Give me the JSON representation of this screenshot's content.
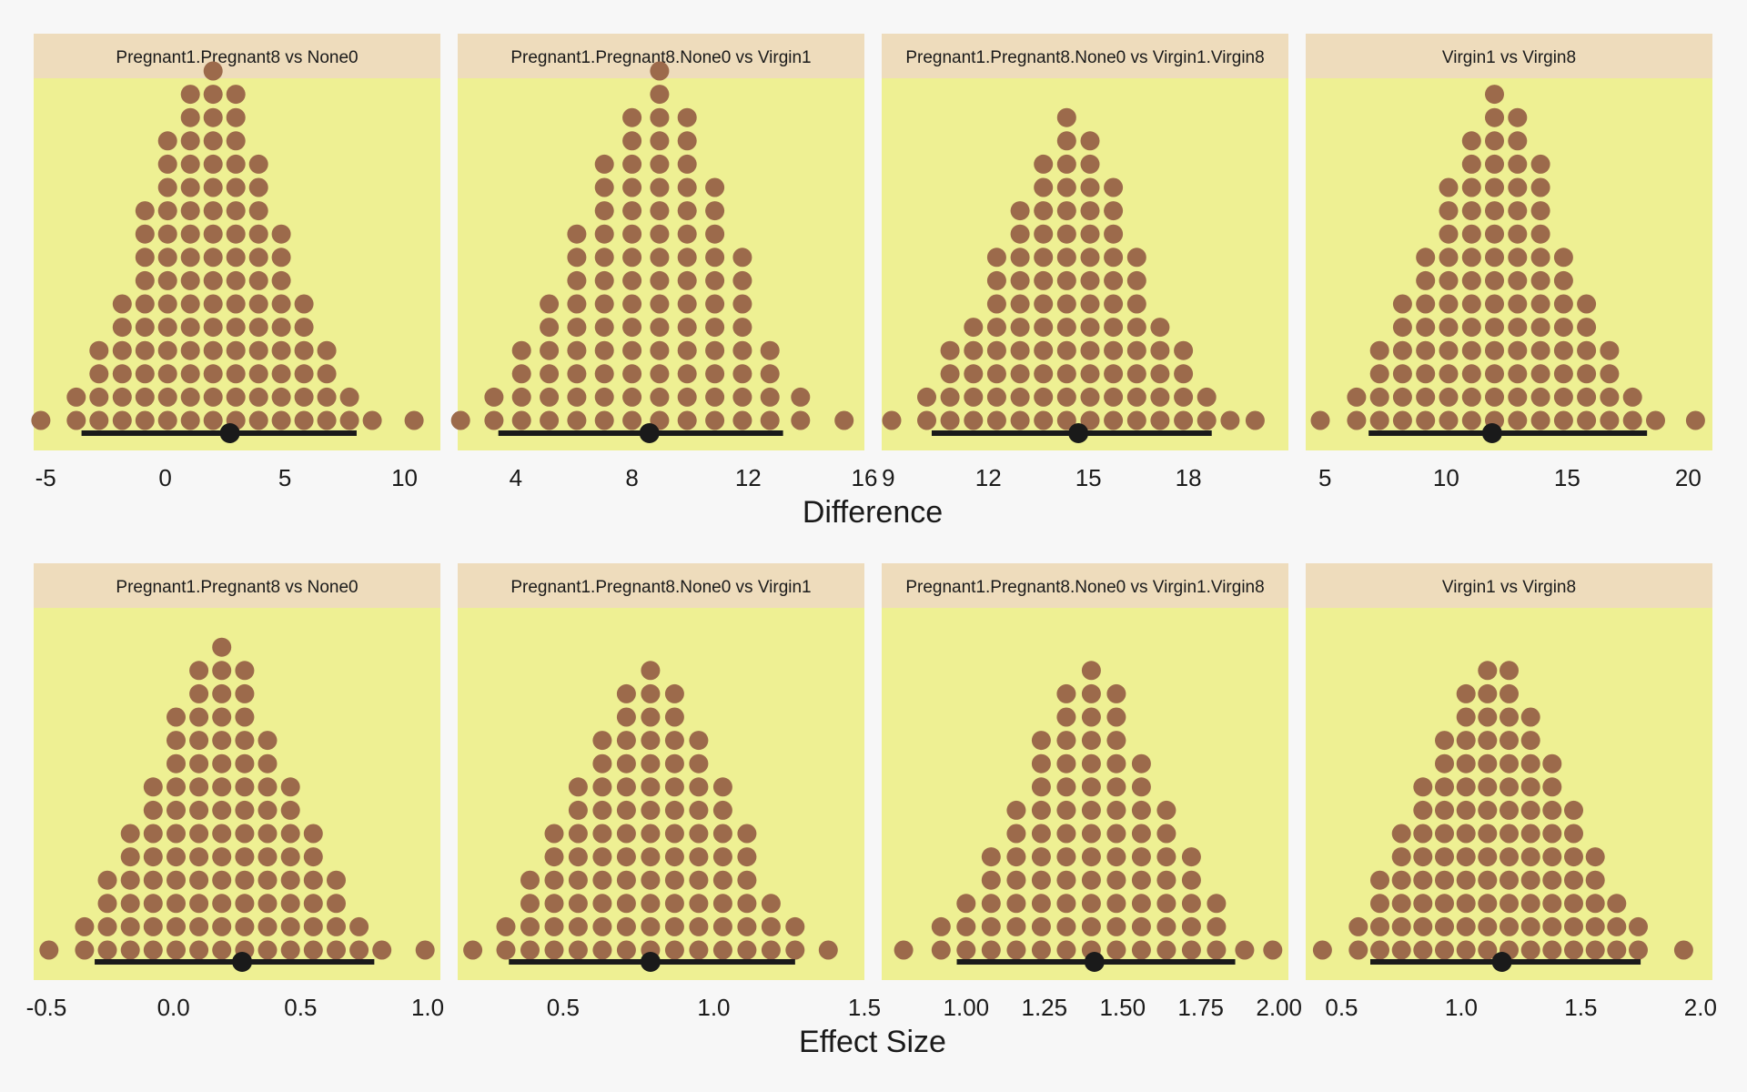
{
  "colors": {
    "background": "#f7f7f7",
    "panel": "#eef093",
    "strip": "#eedcbc",
    "dot": "#9c6a4b",
    "interval": "#1a1a1a"
  },
  "rows": [
    {
      "axis_title": "Difference"
    },
    {
      "axis_title": "Effect Size"
    }
  ],
  "chart_data": [
    {
      "type": "dotplot",
      "panel": "difference-1",
      "title": "Pregnant1.Pregnant8 vs None0",
      "xlabel": "Difference",
      "xlim": [
        -5.5,
        11.5
      ],
      "ticks": [
        -5,
        0,
        5,
        10
      ],
      "tick_labels": [
        "-5",
        "0",
        "5",
        "10"
      ],
      "bins": [
        -5.2,
        -3.72,
        -2.77,
        -1.8,
        -0.85,
        0.1,
        1.05,
        2.0,
        2.95,
        3.9,
        4.85,
        5.8,
        6.75,
        7.7,
        8.65,
        9.1,
        10.4
      ],
      "counts": [
        1,
        2,
        4,
        6,
        10,
        13,
        15,
        16,
        15,
        12,
        9,
        6,
        4,
        2,
        1,
        0,
        1
      ],
      "point_estimate": 2.7,
      "ci": [
        -3.5,
        8.0
      ]
    },
    {
      "type": "dotplot",
      "panel": "difference-2",
      "title": "Pregnant1.Pregnant8.None0 vs Virgin1",
      "xlabel": "Difference",
      "xlim": [
        2.0,
        16.0
      ],
      "ticks": [
        4,
        8,
        12,
        16
      ],
      "tick_labels": [
        "4",
        "8",
        "12",
        "16"
      ],
      "bins": [
        2.1,
        3.25,
        4.2,
        5.15,
        6.1,
        7.05,
        8.0,
        8.95,
        9.9,
        10.85,
        11.8,
        12.75,
        13.8,
        15.3
      ],
      "counts": [
        1,
        2,
        4,
        6,
        9,
        12,
        14,
        16,
        14,
        11,
        8,
        4,
        2,
        1
      ],
      "point_estimate": 8.6,
      "ci": [
        3.4,
        13.2
      ]
    },
    {
      "type": "dotplot",
      "panel": "difference-3",
      "title": "Pregnant1.Pregnant8.None0 vs Virgin1.Virgin8",
      "xlabel": "Difference",
      "xlim": [
        8.8,
        21.0
      ],
      "ticks": [
        9,
        12,
        15,
        18
      ],
      "tick_labels": [
        "9",
        "12",
        "15",
        "18"
      ],
      "bins": [
        9.1,
        10.15,
        10.85,
        11.55,
        12.25,
        12.95,
        13.65,
        14.35,
        15.05,
        15.75,
        16.45,
        17.15,
        17.85,
        18.55,
        19.25,
        20.0
      ],
      "counts": [
        1,
        2,
        4,
        5,
        8,
        10,
        12,
        14,
        13,
        11,
        8,
        5,
        4,
        2,
        1,
        1
      ],
      "point_estimate": 14.7,
      "ci": [
        10.3,
        18.7
      ]
    },
    {
      "type": "dotplot",
      "panel": "difference-4",
      "title": "Virgin1 vs Virgin8",
      "xlabel": "Difference",
      "xlim": [
        4.2,
        21.0
      ],
      "ticks": [
        5,
        10,
        15,
        20
      ],
      "tick_labels": [
        "5",
        "10",
        "15",
        "20"
      ],
      "bins": [
        4.8,
        6.3,
        7.25,
        8.2,
        9.15,
        10.1,
        11.05,
        12.0,
        12.95,
        13.9,
        14.85,
        15.8,
        16.75,
        17.7,
        18.65,
        20.3
      ],
      "counts": [
        1,
        2,
        4,
        6,
        8,
        11,
        13,
        15,
        14,
        12,
        8,
        6,
        4,
        2,
        1,
        1
      ],
      "point_estimate": 11.9,
      "ci": [
        6.8,
        18.3
      ]
    },
    {
      "type": "dotplot",
      "panel": "effect-size-1",
      "title": "Pregnant1.Pregnant8 vs None0",
      "xlabel": "Effect Size",
      "xlim": [
        -0.55,
        1.05
      ],
      "ticks": [
        -0.5,
        0.0,
        0.5,
        1.0
      ],
      "tick_labels": [
        "-0.5",
        "0.0",
        "0.5",
        "1.0"
      ],
      "bins": [
        -0.49,
        -0.35,
        -0.26,
        -0.17,
        -0.08,
        0.01,
        0.1,
        0.19,
        0.28,
        0.37,
        0.46,
        0.55,
        0.64,
        0.73,
        0.82,
        0.99
      ],
      "counts": [
        1,
        2,
        4,
        6,
        8,
        11,
        13,
        14,
        13,
        10,
        8,
        6,
        4,
        2,
        1,
        1
      ],
      "point_estimate": 0.27,
      "ci": [
        -0.31,
        0.79
      ]
    },
    {
      "type": "dotplot",
      "panel": "effect-size-2",
      "title": "Pregnant1.Pregnant8.None0 vs Virgin1",
      "xlabel": "Effect Size",
      "xlim": [
        0.15,
        1.5
      ],
      "ticks": [
        0.5,
        1.0,
        1.5
      ],
      "tick_labels": [
        "0.5",
        "1.0",
        "1.5"
      ],
      "bins": [
        0.2,
        0.31,
        0.39,
        0.47,
        0.55,
        0.63,
        0.71,
        0.79,
        0.87,
        0.95,
        1.03,
        1.11,
        1.19,
        1.27,
        1.38
      ],
      "counts": [
        1,
        2,
        4,
        6,
        8,
        10,
        12,
        13,
        12,
        10,
        8,
        6,
        3,
        2,
        1
      ],
      "point_estimate": 0.79,
      "ci": [
        0.32,
        1.27
      ]
    },
    {
      "type": "dotplot",
      "panel": "effect-size-3",
      "title": "Pregnant1.Pregnant8.None0 vs Virgin1.Virgin8",
      "xlabel": "Effect Size",
      "xlim": [
        0.73,
        2.03
      ],
      "ticks": [
        1.0,
        1.25,
        1.5,
        1.75,
        2.0
      ],
      "tick_labels": [
        "1.00",
        "1.25",
        "1.50",
        "1.75",
        "2.00"
      ],
      "bins": [
        0.8,
        0.92,
        1.0,
        1.08,
        1.16,
        1.24,
        1.32,
        1.4,
        1.48,
        1.56,
        1.64,
        1.72,
        1.8,
        1.89,
        1.98
      ],
      "counts": [
        1,
        2,
        3,
        5,
        7,
        10,
        12,
        13,
        12,
        9,
        7,
        5,
        3,
        1,
        1
      ],
      "point_estimate": 1.41,
      "ci": [
        0.97,
        1.86
      ]
    },
    {
      "type": "dotplot",
      "panel": "effect-size-4",
      "title": "Virgin1 vs Virgin8",
      "xlabel": "Effect Size",
      "xlim": [
        0.35,
        2.05
      ],
      "ticks": [
        0.5,
        1.0,
        1.5,
        2.0
      ],
      "tick_labels": [
        "0.5",
        "1.0",
        "1.5",
        "2.0"
      ],
      "bins": [
        0.42,
        0.57,
        0.66,
        0.75,
        0.84,
        0.93,
        1.02,
        1.11,
        1.2,
        1.29,
        1.38,
        1.47,
        1.56,
        1.65,
        1.74,
        1.93
      ],
      "counts": [
        1,
        2,
        4,
        6,
        8,
        10,
        12,
        13,
        13,
        11,
        9,
        7,
        5,
        3,
        2,
        1
      ],
      "point_estimate": 1.17,
      "ci": [
        0.62,
        1.75
      ]
    }
  ]
}
